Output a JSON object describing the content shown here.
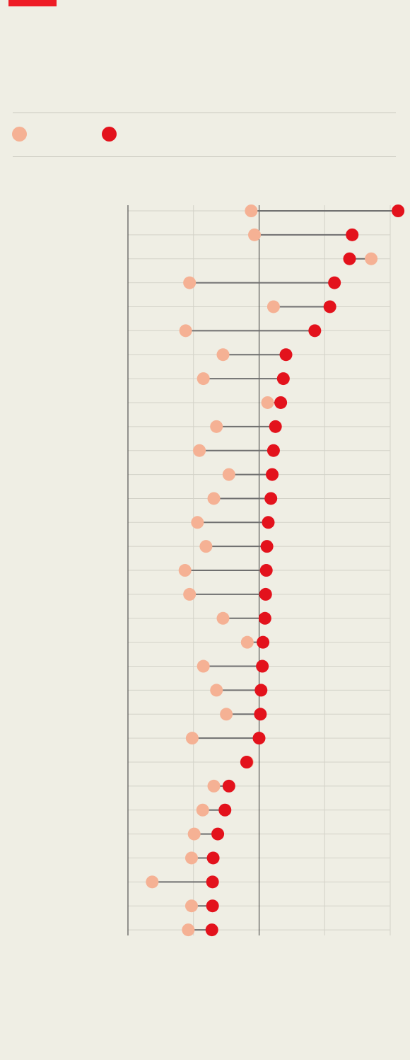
{
  "colors": {
    "background": "#efeee4",
    "brand": "#ee1c25",
    "earlier": "#f5b194",
    "later": "#e3121c",
    "connector": "#6f6f6f",
    "grid": "#d3d2c8",
    "axis": "#333333"
  },
  "legend": {
    "items": [
      {
        "label": "",
        "color": "#f5b194"
      },
      {
        "label": "",
        "color": "#e3121c"
      }
    ]
  },
  "chart_data": {
    "type": "dumbbell",
    "title": "",
    "xlabel": "",
    "ylabel": "",
    "xlim": [
      -2,
      2
    ],
    "x_gridlines": [
      -2,
      -1,
      0,
      1,
      2
    ],
    "reference_line": 0,
    "grid": true,
    "categories": [
      "",
      "",
      "",
      "",
      "",
      "",
      "",
      "",
      "",
      "",
      "",
      "",
      "",
      "",
      "",
      "",
      "",
      "",
      "",
      "",
      "",
      "",
      "",
      "",
      "",
      "",
      "",
      "",
      "",
      "",
      ""
    ],
    "series": [
      {
        "values": [
          -0.12,
          -0.07,
          1.71,
          -1.06,
          0.22,
          -1.12,
          -0.55,
          -0.85,
          0.13,
          -0.65,
          -0.91,
          -0.46,
          -0.69,
          -0.94,
          -0.81,
          -1.13,
          -1.06,
          -0.55,
          -0.18,
          -0.85,
          -0.65,
          -0.5,
          -1.02,
          -0.18,
          -0.69,
          -0.86,
          -0.99,
          -1.03,
          -1.63,
          -1.03,
          -1.08
        ]
      },
      {
        "values": [
          2.12,
          1.42,
          1.38,
          1.15,
          1.08,
          0.85,
          0.41,
          0.37,
          0.33,
          0.25,
          0.22,
          0.2,
          0.18,
          0.14,
          0.12,
          0.11,
          0.1,
          0.09,
          0.06,
          0.05,
          0.03,
          0.02,
          0.0,
          -0.19,
          -0.46,
          -0.52,
          -0.63,
          -0.7,
          -0.71,
          -0.71,
          -0.72
        ]
      }
    ]
  }
}
